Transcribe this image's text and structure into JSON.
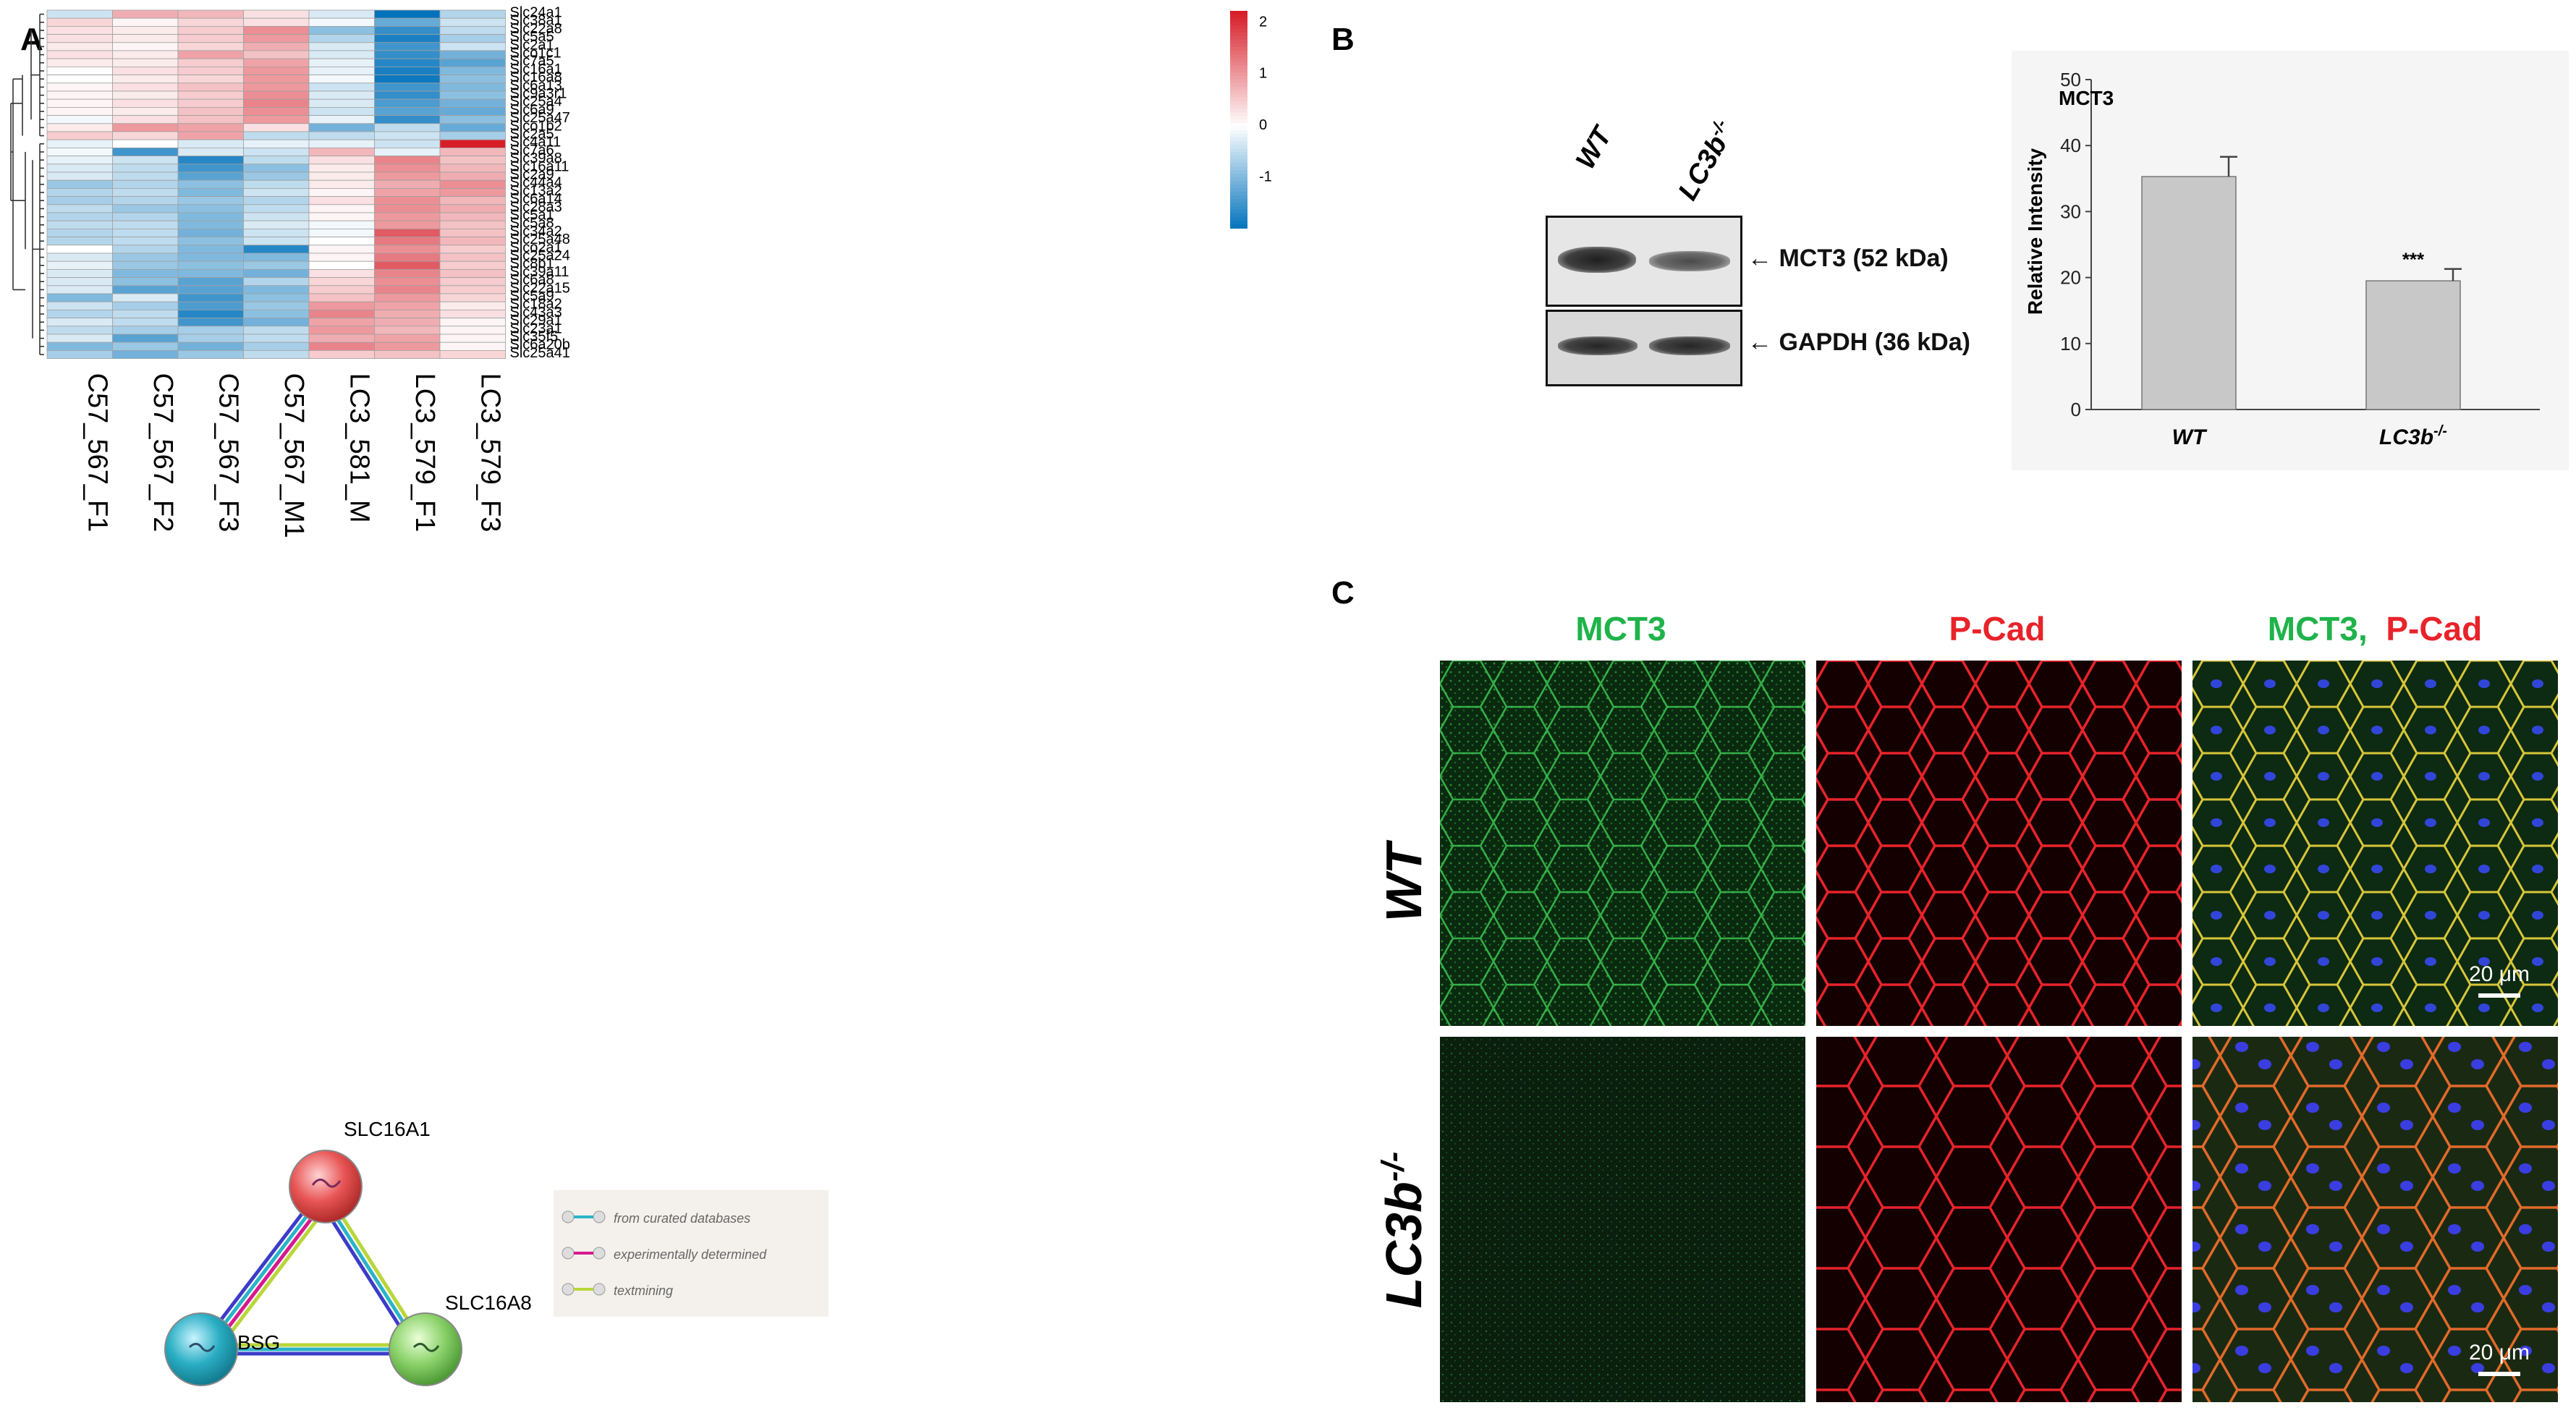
{
  "figure": {
    "panel_labels": {
      "a": "A",
      "b": "B",
      "c": "C"
    }
  },
  "heatmap": {
    "genes": [
      "Slc24a1",
      "Slc38a1",
      "Slc22a8",
      "Slc5a5",
      "Slc2a1",
      "Slco1c1",
      "Slc7a5",
      "Slc16a1",
      "Slc16a8",
      "Slc6a13",
      "Slc9a3r1",
      "Slc25a4",
      "Slc6a9",
      "Slc25a47",
      "Slco1b2",
      "Slc2a5",
      "Slc4a11",
      "Slc7a6",
      "Slc39a8",
      "Slc16a11",
      "Slc2a9",
      "Slc44a4",
      "Slc13a2",
      "Slc6a14",
      "Slc28a3",
      "Slc5a1",
      "Slc5a8",
      "Slc34a2",
      "Slc25a48",
      "Slco2a1",
      "Slc25a24",
      "Slc8b1",
      "Slc39a11",
      "Slc6a8",
      "Slc22a15",
      "Slc5a9",
      "Slc18a2",
      "Slc43a3",
      "Slc29a1",
      "Slc23a1",
      "Slc35f5",
      "Slc6a20b",
      "Slc25a41"
    ],
    "samples": [
      "C57_567_F1",
      "C57_567_F2",
      "C57_567_F3",
      "C57_567_M1",
      "LC3_581_M",
      "LC3_579_F1",
      "LC3_579_F3"
    ],
    "values": [
      [
        -0.4,
        0.8,
        0.7,
        0.3,
        -0.3,
        -2.0,
        -0.6
      ],
      [
        0.4,
        0.1,
        0.4,
        0.3,
        -0.1,
        -1.2,
        -0.4
      ],
      [
        0.3,
        0.2,
        0.5,
        1.1,
        -0.9,
        -1.6,
        -0.5
      ],
      [
        0.3,
        0.2,
        0.5,
        1.0,
        -0.6,
        -1.8,
        -0.7
      ],
      [
        0.2,
        0.1,
        0.4,
        0.8,
        -0.3,
        -1.5,
        -0.4
      ],
      [
        0.3,
        0.2,
        0.9,
        0.6,
        -0.3,
        -1.6,
        -1.1
      ],
      [
        0.2,
        0.2,
        0.5,
        0.9,
        -0.2,
        -1.7,
        -1.3
      ],
      [
        0.0,
        0.3,
        0.5,
        1.0,
        -0.2,
        -1.8,
        -1.0
      ],
      [
        0.0,
        0.2,
        0.4,
        1.0,
        -0.1,
        -1.9,
        -0.9
      ],
      [
        0.1,
        0.3,
        0.6,
        1.0,
        -0.4,
        -1.5,
        -1.0
      ],
      [
        0.1,
        0.2,
        0.5,
        1.1,
        -0.3,
        -1.6,
        -0.9
      ],
      [
        0.1,
        0.3,
        0.5,
        1.2,
        -0.3,
        -1.4,
        -1.1
      ],
      [
        0.1,
        0.2,
        0.6,
        1.1,
        -0.4,
        -1.3,
        -1.2
      ],
      [
        -0.1,
        0.3,
        0.6,
        1.0,
        -0.2,
        -1.6,
        -0.9
      ],
      [
        0.2,
        1.0,
        0.9,
        0.3,
        -1.1,
        -0.5,
        -1.2
      ],
      [
        0.5,
        0.4,
        0.9,
        -0.5,
        -0.5,
        -0.4,
        -0.7
      ],
      [
        -0.2,
        0.0,
        -0.3,
        -0.2,
        -0.2,
        -0.4,
        2.3
      ],
      [
        -0.1,
        -1.5,
        -0.3,
        -0.4,
        0.7,
        -0.2,
        0.7
      ],
      [
        -0.2,
        -0.4,
        -1.7,
        -0.5,
        0.3,
        1.2,
        0.6
      ],
      [
        -0.3,
        -0.5,
        -1.5,
        -0.9,
        0.2,
        1.1,
        0.7
      ],
      [
        -0.3,
        -0.5,
        -1.3,
        -0.8,
        0.2,
        1.0,
        0.8
      ],
      [
        -0.8,
        -0.6,
        -0.9,
        -0.5,
        0.2,
        0.8,
        1.1
      ],
      [
        -0.6,
        -0.5,
        -1.0,
        -0.4,
        0.1,
        0.9,
        1.0
      ],
      [
        -0.7,
        -0.6,
        -0.8,
        -0.6,
        0.3,
        1.1,
        0.7
      ],
      [
        -0.5,
        -0.8,
        -0.9,
        -0.5,
        0.1,
        1.1,
        0.8
      ],
      [
        -0.6,
        -0.6,
        -1.0,
        -0.4,
        0.1,
        1.0,
        0.7
      ],
      [
        -0.5,
        -0.5,
        -1.0,
        -0.3,
        -0.1,
        1.0,
        0.6
      ],
      [
        -0.6,
        -0.5,
        -1.1,
        -0.4,
        -0.1,
        1.6,
        0.6
      ],
      [
        -0.6,
        -0.5,
        -0.9,
        -0.4,
        0.0,
        1.3,
        0.7
      ],
      [
        0.0,
        -0.6,
        -1.0,
        -1.7,
        0.1,
        1.1,
        0.5
      ],
      [
        -0.3,
        -0.8,
        -1.0,
        -1.0,
        0.1,
        1.3,
        0.6
      ],
      [
        -0.2,
        -0.8,
        -0.9,
        -0.8,
        0.0,
        1.6,
        0.5
      ],
      [
        -0.3,
        -1.0,
        -1.0,
        -1.1,
        0.3,
        1.2,
        0.6
      ],
      [
        -0.3,
        -0.9,
        -1.3,
        -0.6,
        0.4,
        1.1,
        0.5
      ],
      [
        -0.3,
        -1.3,
        -1.3,
        -1.0,
        0.5,
        1.2,
        0.5
      ],
      [
        -1.0,
        -0.3,
        -1.5,
        -0.9,
        0.6,
        1.0,
        0.4
      ],
      [
        -0.4,
        -0.7,
        -1.4,
        -0.8,
        1.0,
        0.9,
        0.2
      ],
      [
        -0.6,
        -0.5,
        -1.7,
        -0.9,
        1.2,
        0.8,
        0.3
      ],
      [
        -0.3,
        -0.5,
        -1.5,
        -1.1,
        0.9,
        0.8,
        0.1
      ],
      [
        -0.5,
        -0.7,
        -0.7,
        -0.5,
        1.0,
        0.7,
        0.1
      ],
      [
        -0.3,
        -1.3,
        -0.7,
        -0.5,
        0.8,
        0.9,
        0.1
      ],
      [
        -1.0,
        -0.8,
        -1.1,
        -0.7,
        1.2,
        1.0,
        0.1
      ],
      [
        -0.7,
        -1.1,
        -0.8,
        -0.5,
        0.5,
        0.6,
        0.4
      ]
    ],
    "legend_ticks": [
      "2",
      "1",
      "0",
      "-1"
    ],
    "legend_values": [
      2,
      1,
      0,
      -1
    ],
    "legend_range": [
      -2,
      2.2
    ]
  },
  "network": {
    "nodes": [
      "SLC16A1",
      "BSG",
      "SLC16A8"
    ],
    "legend": [
      "from curated databases",
      "experimentally determined",
      "textmining"
    ],
    "colors": {
      "curated": "#2ab4c8",
      "experimental": "#d7198f",
      "textmining": "#b9d63a",
      "coexpression": "#3c3cc8"
    }
  },
  "blot": {
    "lanes": [
      "WT",
      "LC3b",
      "-/-"
    ],
    "bands": [
      "← MCT3 (52 kDa)",
      "← GAPDH (36 kDa)"
    ]
  },
  "chart_data": {
    "type": "bar",
    "title": "MCT3",
    "categories": [
      "WT",
      "LC3b"
    ],
    "category_superscript": [
      "",
      "-/-"
    ],
    "values": [
      35.3,
      19.5
    ],
    "errors": [
      3.0,
      1.8
    ],
    "significance": [
      "",
      "***"
    ],
    "ylabel": "Relative Intensity",
    "xlabel": "",
    "ylim": [
      0,
      50
    ],
    "yticks": [
      0,
      10,
      20,
      30,
      40,
      50
    ],
    "bar_color": "#c8c8c8"
  },
  "microscopy": {
    "column_headers": {
      "col1": "MCT3",
      "col2": "P-Cad",
      "col3a": "MCT3,",
      "col3b": "P-Cad"
    },
    "row_labels": {
      "wt": "WT",
      "ko": "LC3b",
      "ko_sup": "-/-"
    },
    "scale_bar": "20 μm",
    "colors": {
      "green": "#1fb34a",
      "red": "#e8232a"
    }
  }
}
